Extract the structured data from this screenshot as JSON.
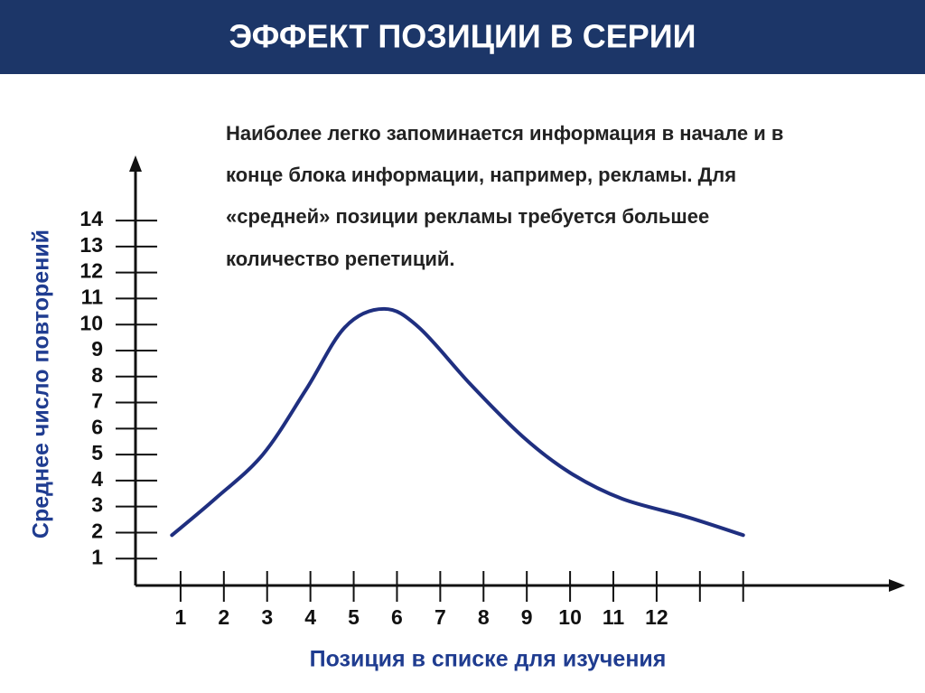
{
  "chart_data": {
    "type": "line",
    "title": "ЭФФЕКТ  ПОЗИЦИИ В СЕРИИ",
    "annotation": [
      "Наиболее легко запоминается информация в начале и в",
      "конце блока информации, например, рекламы. Для",
      "«средней» позиции рекламы требуется большее",
      "количество репетиций."
    ],
    "y_label": "Среднее число повторений",
    "x_label": "Позиция в списке для изучения",
    "x": [
      0.8,
      1.8,
      2.9,
      3.9,
      4.8,
      5.7,
      6.5,
      7.7,
      8.9,
      10.0,
      11.2,
      12.7,
      14.0
    ],
    "values": [
      1.9,
      3.3,
      5.0,
      7.5,
      9.9,
      10.6,
      9.9,
      7.7,
      5.7,
      4.3,
      3.3,
      2.6,
      1.9
    ],
    "color": "#1f2f80",
    "xlim": [
      0,
      17.7
    ],
    "ylim": [
      0,
      16.4
    ],
    "xticks": [
      1,
      2,
      3,
      4,
      5,
      6,
      7,
      8,
      9,
      10,
      11,
      12
    ],
    "minor_xticks": [
      13,
      14
    ],
    "yticks": [
      1,
      2,
      3,
      4,
      5,
      6,
      7,
      8,
      9,
      10,
      11,
      12,
      13,
      14
    ]
  }
}
